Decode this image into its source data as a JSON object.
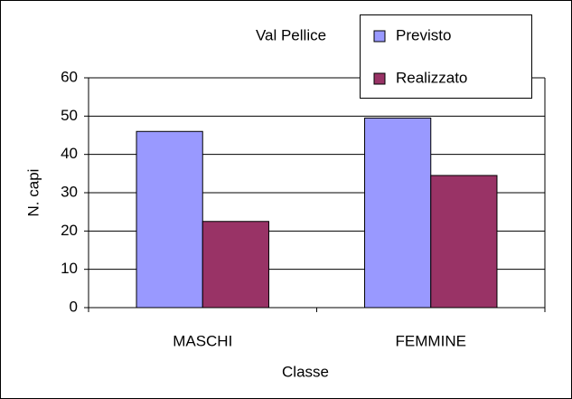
{
  "chart_data": {
    "type": "bar",
    "title": "Val Pellice",
    "categories": [
      "MASCHI",
      "FEMMINE"
    ],
    "series": [
      {
        "name": "Previsto",
        "color": "#9999ff",
        "values": [
          46,
          49.5
        ]
      },
      {
        "name": "Realizzato",
        "color": "#993366",
        "values": [
          22.5,
          34.5
        ]
      }
    ],
    "xlabel": "Classe",
    "ylabel": "N. capi",
    "ylim": [
      0,
      60
    ],
    "yticks": [
      0,
      10,
      20,
      30,
      40,
      50,
      60
    ],
    "grid": true,
    "legend": "top-right"
  }
}
